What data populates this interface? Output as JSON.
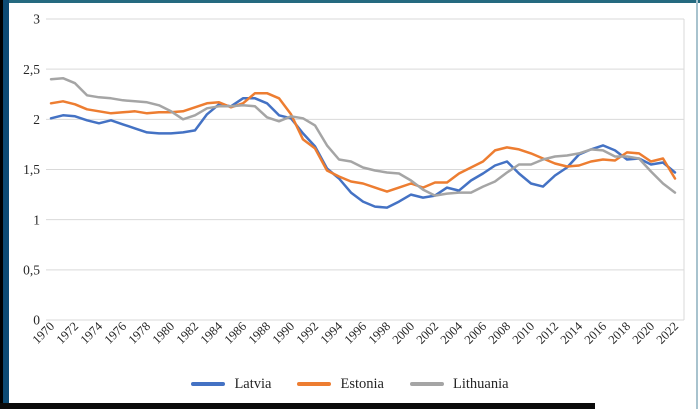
{
  "window": {
    "frame": {
      "top_color": "#256a80",
      "left_outer_color": "#000000",
      "left_inner_color": "#0d4a73",
      "right_color": "#a8c3ce",
      "bottom_color": "#0b0b0b"
    }
  },
  "chart_data": {
    "type": "line",
    "title": "",
    "grid": true,
    "legend_position": "bottom",
    "ylim": [
      0,
      3
    ],
    "y_ticks": [
      {
        "value": 3,
        "label": "3"
      },
      {
        "value": 2.5,
        "label": "2,5"
      },
      {
        "value": 2,
        "label": "2"
      },
      {
        "value": 1.5,
        "label": "1,5"
      },
      {
        "value": 1,
        "label": "1"
      },
      {
        "value": 0.5,
        "label": "0,5"
      },
      {
        "value": 0,
        "label": "0"
      }
    ],
    "x_start": 1970,
    "x_tick_labels": [
      "1970",
      "1972",
      "1974",
      "1976",
      "1978",
      "1980",
      "1982",
      "1984",
      "1986",
      "1988",
      "1990",
      "1992",
      "1994",
      "1996",
      "1998",
      "2000",
      "2002",
      "2004",
      "2006",
      "2008",
      "2010",
      "2012",
      "2014",
      "2016",
      "2018",
      "2020",
      "2022"
    ],
    "years": [
      1970,
      1971,
      1972,
      1973,
      1974,
      1975,
      1976,
      1977,
      1978,
      1979,
      1980,
      1981,
      1982,
      1983,
      1984,
      1985,
      1986,
      1987,
      1988,
      1989,
      1990,
      1991,
      1992,
      1993,
      1994,
      1995,
      1996,
      1997,
      1998,
      1999,
      2000,
      2001,
      2002,
      2003,
      2004,
      2005,
      2006,
      2007,
      2008,
      2009,
      2010,
      2011,
      2012,
      2013,
      2014,
      2015,
      2016,
      2017,
      2018,
      2019,
      2020,
      2021,
      2022
    ],
    "series": [
      {
        "name": "Latvia",
        "color": "#4472C4",
        "values": [
          2.01,
          2.04,
          2.03,
          1.99,
          1.96,
          1.99,
          1.95,
          1.91,
          1.87,
          1.86,
          1.86,
          1.87,
          1.89,
          2.05,
          2.15,
          2.13,
          2.21,
          2.21,
          2.16,
          2.04,
          2.01,
          1.86,
          1.73,
          1.51,
          1.41,
          1.27,
          1.18,
          1.13,
          1.12,
          1.18,
          1.25,
          1.22,
          1.24,
          1.32,
          1.29,
          1.39,
          1.46,
          1.54,
          1.58,
          1.46,
          1.36,
          1.33,
          1.44,
          1.52,
          1.65,
          1.7,
          1.74,
          1.69,
          1.6,
          1.61,
          1.55,
          1.57,
          1.47
        ]
      },
      {
        "name": "Estonia",
        "color": "#ED7D31",
        "values": [
          2.16,
          2.18,
          2.15,
          2.1,
          2.08,
          2.06,
          2.07,
          2.08,
          2.06,
          2.07,
          2.07,
          2.08,
          2.12,
          2.16,
          2.17,
          2.12,
          2.16,
          2.26,
          2.26,
          2.21,
          2.05,
          1.8,
          1.71,
          1.49,
          1.43,
          1.38,
          1.36,
          1.32,
          1.28,
          1.32,
          1.36,
          1.32,
          1.37,
          1.37,
          1.46,
          1.52,
          1.58,
          1.69,
          1.72,
          1.7,
          1.66,
          1.61,
          1.56,
          1.53,
          1.54,
          1.58,
          1.6,
          1.59,
          1.67,
          1.66,
          1.58,
          1.61,
          1.41
        ]
      },
      {
        "name": "Lithuania",
        "color": "#A5A5A5",
        "values": [
          2.4,
          2.41,
          2.36,
          2.24,
          2.22,
          2.21,
          2.19,
          2.18,
          2.17,
          2.14,
          2.08,
          2.0,
          2.04,
          2.11,
          2.13,
          2.13,
          2.14,
          2.13,
          2.02,
          1.98,
          2.03,
          2.01,
          1.94,
          1.74,
          1.6,
          1.58,
          1.52,
          1.49,
          1.47,
          1.46,
          1.39,
          1.3,
          1.24,
          1.26,
          1.27,
          1.27,
          1.33,
          1.38,
          1.47,
          1.55,
          1.55,
          1.6,
          1.63,
          1.64,
          1.66,
          1.7,
          1.69,
          1.63,
          1.63,
          1.61,
          1.48,
          1.36,
          1.27
        ]
      }
    ]
  }
}
